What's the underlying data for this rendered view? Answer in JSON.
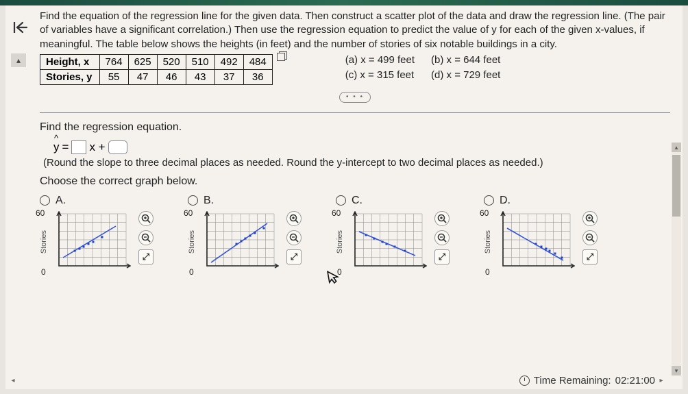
{
  "problem": {
    "text": "Find the equation of the regression line for the given data. Then construct a scatter plot of the data and draw the regression line. (The pair of variables have a significant correlation.) Then use the regression equation to predict the value of y for each of the given x-values, if meaningful. The table below shows the heights (in feet) and the number of stories of six notable buildings in a city."
  },
  "table": {
    "row_labels": [
      "Height, x",
      "Stories, y"
    ],
    "data": [
      [
        764,
        625,
        520,
        510,
        492,
        484
      ],
      [
        55,
        47,
        46,
        43,
        37,
        36
      ]
    ]
  },
  "subquestions": {
    "a": "(a) x = 499 feet",
    "b": "(b) x = 644 feet",
    "c": "(c) x = 315 feet",
    "d": "(d) x = 729 feet"
  },
  "section1": {
    "prompt": "Find the regression equation.",
    "eq_prefix": "y",
    "eq_mid": "= ",
    "eq_x": "x + ",
    "hint": "(Round the slope to three decimal places as needed. Round the y-intercept to two decimal places as needed.)"
  },
  "section2": {
    "prompt": "Choose the correct graph below.",
    "options": [
      "A.",
      "B.",
      "C.",
      "D."
    ],
    "y_label": "Stories",
    "y_max": "60",
    "y_min": "0"
  },
  "charts": {
    "axis_color": "#222",
    "grid_color": "#888",
    "point_color": "#2244cc",
    "line_color": "#3355dd",
    "bg": "#f5f2ed",
    "A": {
      "line": [
        [
          18,
          68
        ],
        [
          95,
          22
        ]
      ],
      "pts": [
        [
          35,
          58
        ],
        [
          42,
          55
        ],
        [
          48,
          52
        ],
        [
          55,
          48
        ],
        [
          62,
          45
        ],
        [
          75,
          38
        ]
      ]
    },
    "B": {
      "line": [
        [
          18,
          75
        ],
        [
          100,
          18
        ]
      ],
      "pts": [
        [
          55,
          48
        ],
        [
          62,
          44
        ],
        [
          68,
          40
        ],
        [
          75,
          36
        ],
        [
          82,
          32
        ],
        [
          95,
          25
        ]
      ]
    },
    "C": {
      "line": [
        [
          18,
          30
        ],
        [
          100,
          65
        ]
      ],
      "pts": [
        [
          28,
          35
        ],
        [
          40,
          40
        ],
        [
          52,
          45
        ],
        [
          58,
          48
        ],
        [
          70,
          52
        ],
        [
          85,
          58
        ]
      ]
    },
    "D": {
      "line": [
        [
          18,
          25
        ],
        [
          100,
          72
        ]
      ],
      "pts": [
        [
          60,
          48
        ],
        [
          68,
          52
        ],
        [
          75,
          55
        ],
        [
          80,
          58
        ],
        [
          88,
          62
        ],
        [
          98,
          68
        ]
      ]
    }
  },
  "footer": {
    "label": "Time Remaining:",
    "value": "02:21:00"
  }
}
